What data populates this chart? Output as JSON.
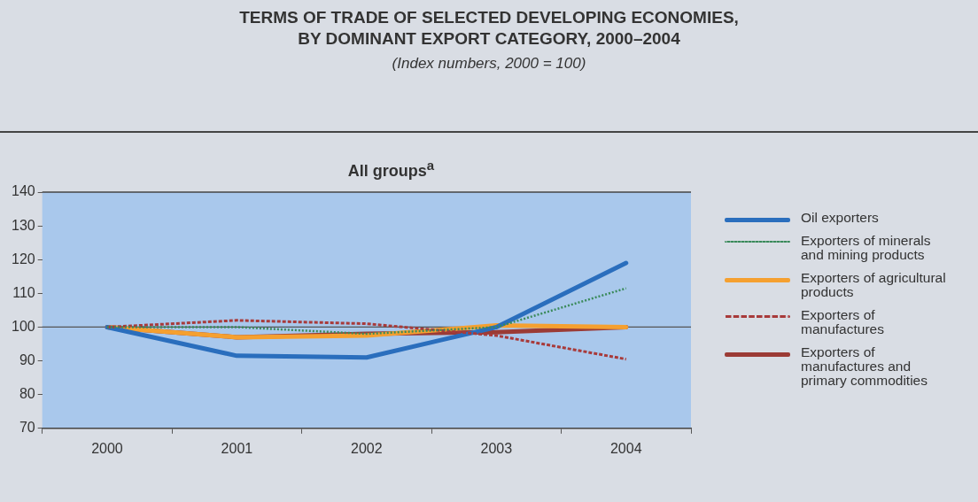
{
  "chart_data": {
    "type": "line",
    "title": "TERMS OF TRADE OF SELECTED DEVELOPING ECONOMIES,\nBY DOMINANT EXPORT CATEGORY, 2000–2004",
    "subtitle": "(Index numbers, 2000 = 100)",
    "annotations": [
      "All groups$^{a}$"
    ],
    "categories": [
      "2000",
      "2001",
      "2002",
      "2003",
      "2004"
    ],
    "series": [
      {
        "name": "Oil exporters",
        "color": "#2a6ebd",
        "line_style": "solid",
        "values": [
          100,
          91.5,
          91,
          100,
          119
        ]
      },
      {
        "name": "Exporters of minerals and mining products",
        "color": "#3a8a5a",
        "line_style": "dotted",
        "values": [
          100,
          100,
          98,
          100,
          111.5
        ]
      },
      {
        "name": "Exporters of agricultural products",
        "color": "#f5a030",
        "line_style": "solid",
        "values": [
          100,
          97,
          97.5,
          100.5,
          100
        ]
      },
      {
        "name": "Exporters of manufactures",
        "color": "#a83a3a",
        "line_style": "dashed",
        "values": [
          100,
          102,
          101,
          97.5,
          90.5
        ]
      },
      {
        "name": "Exporters of manufactures and primary commodities",
        "color": "#9b3b35",
        "line_style": "solid",
        "values": [
          100,
          97,
          98,
          98.5,
          100
        ]
      }
    ],
    "ylim": [
      70,
      140
    ],
    "yticks": [
      70,
      80,
      90,
      100,
      110,
      120,
      130,
      140
    ],
    "ref_lines": [
      {
        "axis": "y",
        "value": 100,
        "color": "#555555"
      }
    ],
    "grid": false,
    "legend": "right",
    "marker": "none"
  }
}
